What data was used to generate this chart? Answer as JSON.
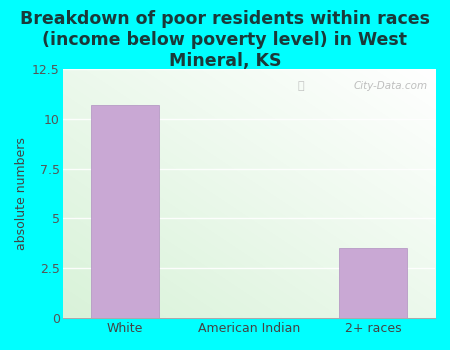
{
  "title": "Breakdown of poor residents within races\n(income below poverty level) in West\nMineral, KS",
  "categories": [
    "White",
    "American Indian",
    "2+ races"
  ],
  "values": [
    10.7,
    0,
    3.5
  ],
  "bar_color": "#c9a8d4",
  "bar_edge_color": "#b090c0",
  "ylabel": "absolute numbers",
  "ylim": [
    0,
    12.5
  ],
  "yticks": [
    0,
    2.5,
    5.0,
    7.5,
    10.0,
    12.5
  ],
  "ytick_labels": [
    "0",
    "2.5",
    "5",
    "7.5",
    "10",
    "12.5"
  ],
  "background_outer": "#00ffff",
  "title_color": "#1a3a3a",
  "title_fontsize": 12.5,
  "watermark": "City-Data.com"
}
